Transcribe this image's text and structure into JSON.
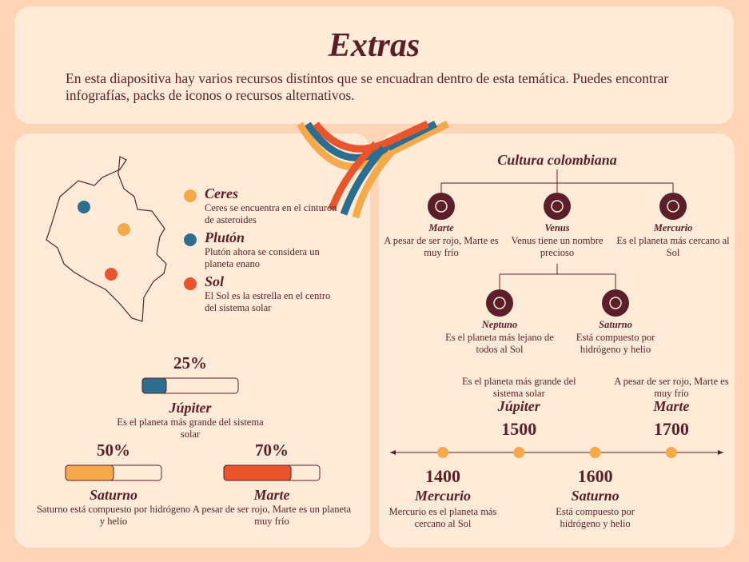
{
  "header": {
    "title": "Extras",
    "text": "En esta diapositiva hay varios recursos distintos que se encuadran dentro de esta temática. Puedes encontrar infografías, packs de iconos o recursos alternativos."
  },
  "map_legend": [
    {
      "name": "Ceres",
      "text": "Ceres se encuentra en el cinturón de asteroides",
      "color": "#f4a94a"
    },
    {
      "name": "Plutón",
      "text": "Plutón ahora se considera un planeta enano",
      "color": "#2c6e8f"
    },
    {
      "name": "Sol",
      "text": "El Sol es la estrella en el centro del sistema solar",
      "color": "#e8542b"
    }
  ],
  "progress": [
    {
      "percent": {
        "value": 25,
        "label": "25%"
      },
      "name": "Júpiter",
      "text": "Es el planeta más grande del sistema solar",
      "color": "#2c6e8f"
    },
    {
      "percent": {
        "value": 50,
        "label": "50%"
      },
      "name": "Saturno",
      "text": "Saturno está compuesto por hidrógeno y helio",
      "color": "#f4a94a"
    },
    {
      "percent": {
        "value": 70,
        "label": "70%"
      },
      "name": "Marte",
      "text": "A pesar de ser rojo, Marte es un planeta muy frío",
      "color": "#e8542b"
    }
  ],
  "tree": {
    "title": "Cultura colombiana",
    "nodes": [
      {
        "name": "Marte",
        "text": "A pesar de ser rojo, Marte es muy frío"
      },
      {
        "name": "Venus",
        "text": "Venus tiene un nombre precioso"
      },
      {
        "name": "Mercurio",
        "text": "Es el planeta más cercano al Sol"
      },
      {
        "name": "Neptuno",
        "text": "Es el planeta más lejano de todos al Sol"
      },
      {
        "name": "Saturno",
        "text": "Está compuesto por hidrógeno y helio"
      }
    ]
  },
  "timeline": [
    {
      "year": 1400,
      "name": "Mercurio",
      "text": "Mercurio es el planeta más cercano al Sol"
    },
    {
      "year": 1500,
      "name": "Júpiter",
      "text": "Es el planeta más grande del sistema solar"
    },
    {
      "year": 1600,
      "name": "Saturno",
      "text": "Está compuesto por hidrógeno y helio"
    },
    {
      "year": 1700,
      "name": "Marte",
      "text": "A pesar de ser rojo, Marte es muy frío"
    }
  ]
}
